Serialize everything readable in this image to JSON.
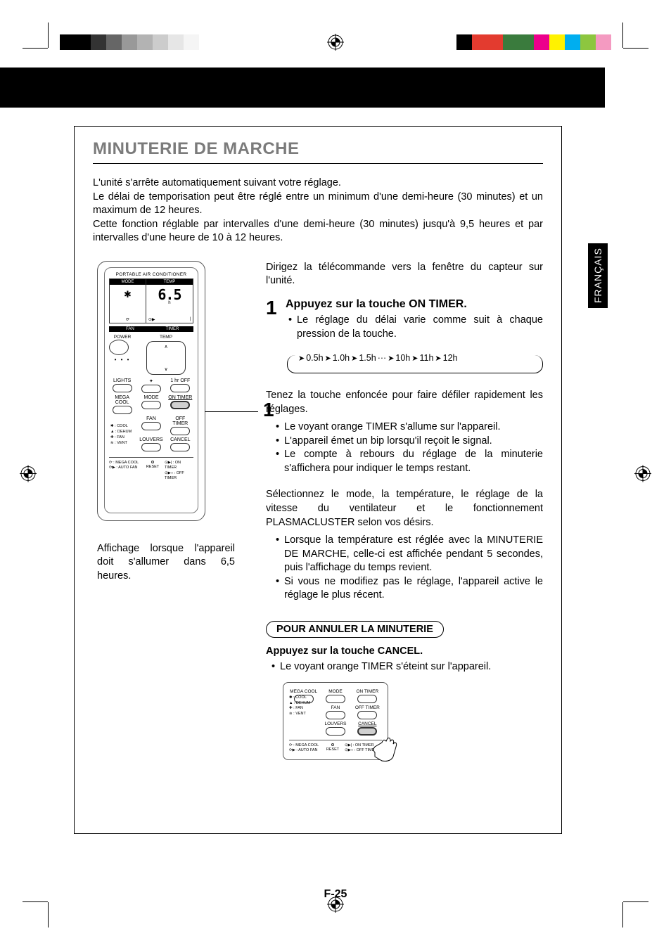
{
  "colorbars": {
    "left": [
      "#000000",
      "#000000",
      "#333333",
      "#666666",
      "#999999",
      "#b3b3b3",
      "#cccccc",
      "#e6e6e6",
      "#f5f5f5",
      "#ffffff"
    ],
    "right": [
      "#000000",
      "#e33b2f",
      "#e33b2f",
      "#3a7b3d",
      "#3a7b3d",
      "#ec008c",
      "#fff200",
      "#00aeef",
      "#8dc63f",
      "#f49ac1"
    ]
  },
  "section": {
    "title": "MINUTERIE DE MARCHE",
    "intro": [
      "L'unité s'arrête automatiquement suivant votre réglage.",
      "Le délai de temporisation peut être réglé entre un minimum d'une demi-heure (30 minutes) et un maximum de 12 heures.",
      "Cette fonction réglable par intervalles d'une demi-heure (30 minutes) jusqu'à 9,5 heures et par intervalles d'une heure de 10 à 12 heures."
    ]
  },
  "remote": {
    "header": "PORTABLE AIR CONDITIONER",
    "mode_label": "MODE",
    "temp_label": "TEMP",
    "digits": "6.5",
    "digits_sub": "h",
    "fan_label": "FAN",
    "timer_label": "TIMER",
    "power_label": "POWER",
    "temp_btn_label": "TEMP",
    "row1": [
      "LIGHTS",
      "",
      "1 hr OFF"
    ],
    "row2": [
      "MEGA COOL",
      "MODE",
      "ON TIMER"
    ],
    "row3": [
      "",
      "FAN",
      "OFF TIMER"
    ],
    "row4": [
      "",
      "LOUVERS",
      "CANCEL"
    ],
    "legend_left": [
      "✱ : COOL",
      "▲ : DEHUM",
      "✚ : FAN",
      "≋ : VENT"
    ],
    "legend_bottom_left": [
      "⟳ : MEGA COOL",
      "⟳▶ : AUTO FAN"
    ],
    "legend_bottom_right": [
      "⊙▶| : ON TIMER",
      "⊙▶○ : OFF TIMER"
    ],
    "reset_label": "RESET",
    "callout_number": "1"
  },
  "remote_caption": "Affichage lorsque l'appareil doit s'allumer dans 6,5 heures.",
  "rightcol": {
    "lead": "Dirigez la télécommande vers la fenêtre du capteur sur l'unité.",
    "step1": {
      "num": "1",
      "title": "Appuyez sur la touche ON TIMER.",
      "bullets": [
        "Le réglage du délai varie comme suit à chaque pression de la touche."
      ]
    },
    "flow": [
      "0.5h",
      "1.0h",
      "1.5h",
      "···",
      "10h",
      "11h",
      "12h"
    ],
    "hold": "Tenez la touche enfoncée pour faire défiler rapidement les réglages.",
    "hold_bullets": [
      "Le voyant orange TIMER s'allume sur l'appareil.",
      "L'appareil émet un bip lorsqu'il reçoit le signal.",
      "Le compte à rebours du réglage de la minuterie s'affichera pour indiquer le temps restant."
    ],
    "select_head": "Sélectionnez le mode, la température, le réglage de la vitesse du ventilateur et le fonctionnement PLASMACLUSTER selon vos désirs.",
    "select_bullets": [
      "Lorsque la température est réglée avec la MINUTERIE DE MARCHE, celle-ci est affichée pendant 5 secondes, puis l'affichage du temps revient.",
      "Si vous ne modifiez pas le réglage, l'appareil active le réglage le plus récent."
    ],
    "cancel_heading": "POUR ANNULER LA MINUTERIE",
    "cancel_title": "Appuyez sur la touche CANCEL.",
    "cancel_bullets": [
      "Le voyant orange TIMER s'éteint sur l'appareil."
    ]
  },
  "side_tab": "FRANÇAIS",
  "page_number": "F-25"
}
